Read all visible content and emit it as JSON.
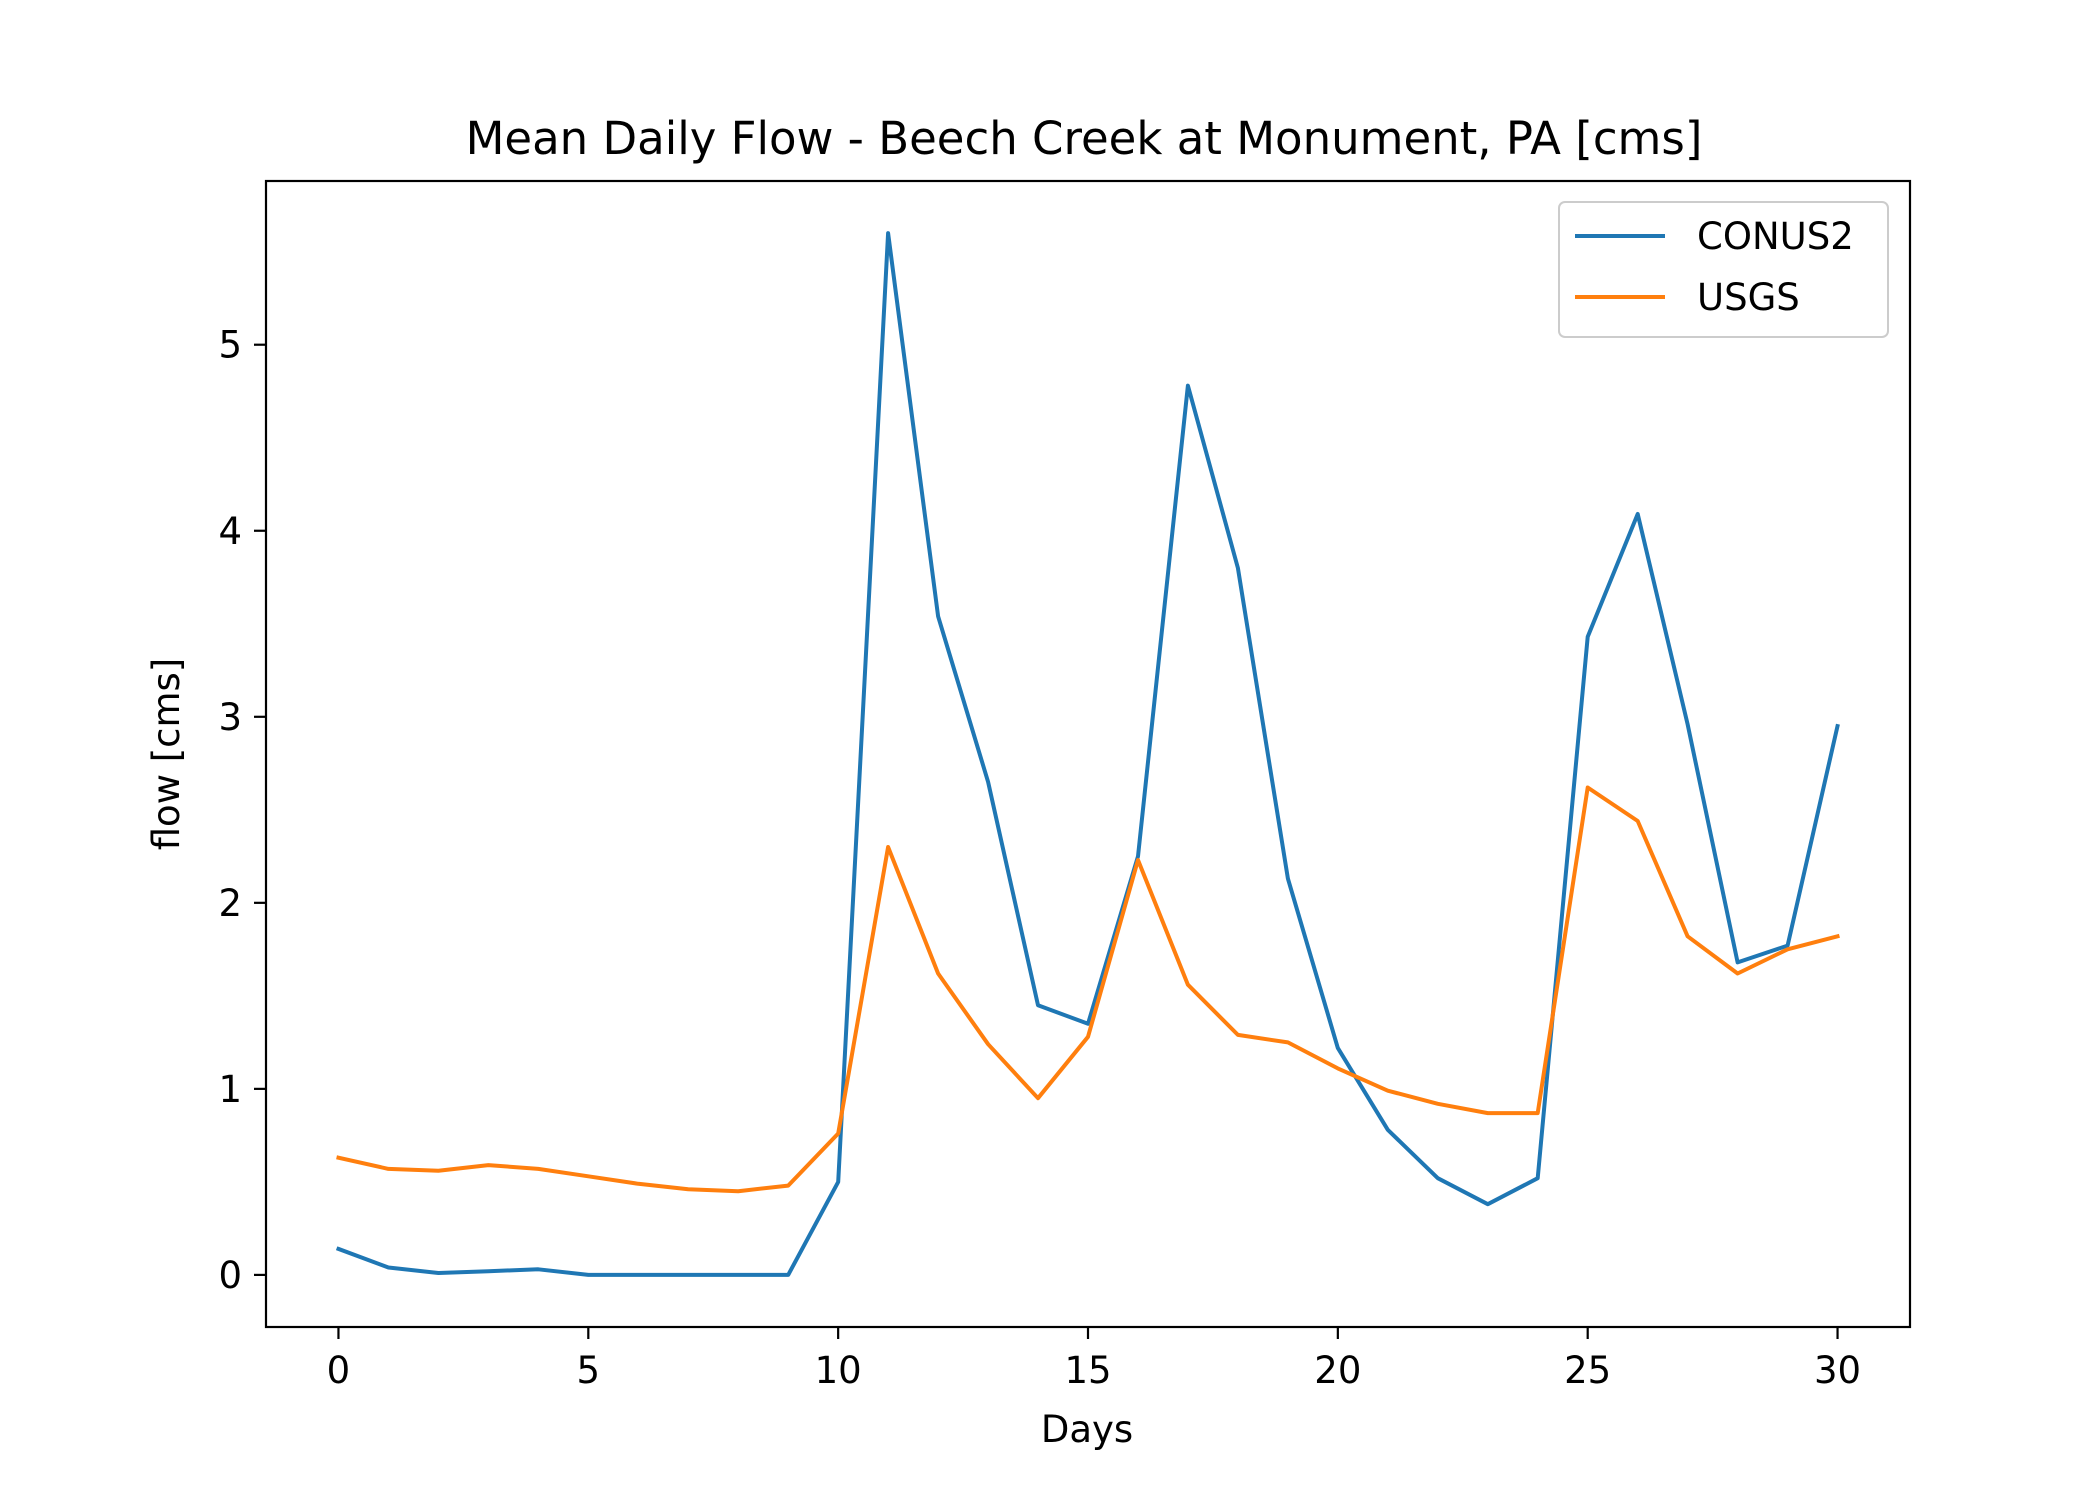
{
  "chart_data": {
    "type": "line",
    "title": "Mean Daily Flow - Beech Creek at Monument, PA [cms]",
    "xlabel": "Days",
    "ylabel": "flow [cms]",
    "xlim": [
      -1.45,
      31.45
    ],
    "ylim": [
      -0.28,
      5.88
    ],
    "xticks": [
      0,
      5,
      10,
      15,
      20,
      25,
      30
    ],
    "yticks": [
      0,
      1,
      2,
      3,
      4,
      5
    ],
    "grid": false,
    "legend_position": "top-right",
    "x": [
      0,
      1,
      2,
      3,
      4,
      5,
      6,
      7,
      8,
      9,
      10,
      11,
      12,
      13,
      14,
      15,
      16,
      17,
      18,
      19,
      20,
      21,
      22,
      23,
      24,
      25,
      26,
      27,
      28,
      29,
      30
    ],
    "series": [
      {
        "name": "CONUS2",
        "color": "#1f77b4",
        "values": [
          0.14,
          0.04,
          0.01,
          0.02,
          0.03,
          0.0,
          0.0,
          0.0,
          0.0,
          0.0,
          0.5,
          5.6,
          3.54,
          2.65,
          1.45,
          1.35,
          2.25,
          4.78,
          3.8,
          2.13,
          1.22,
          0.78,
          0.52,
          0.38,
          0.52,
          3.43,
          4.09,
          2.96,
          1.68,
          1.77,
          2.95
        ]
      },
      {
        "name": "USGS",
        "color": "#ff7f0e",
        "values": [
          0.63,
          0.57,
          0.56,
          0.59,
          0.57,
          0.53,
          0.49,
          0.46,
          0.45,
          0.48,
          0.76,
          2.3,
          1.62,
          1.24,
          0.95,
          1.28,
          2.23,
          1.56,
          1.29,
          1.25,
          1.11,
          0.99,
          0.92,
          0.87,
          0.87,
          2.62,
          2.44,
          1.82,
          1.62,
          1.75,
          1.82
        ]
      }
    ]
  }
}
